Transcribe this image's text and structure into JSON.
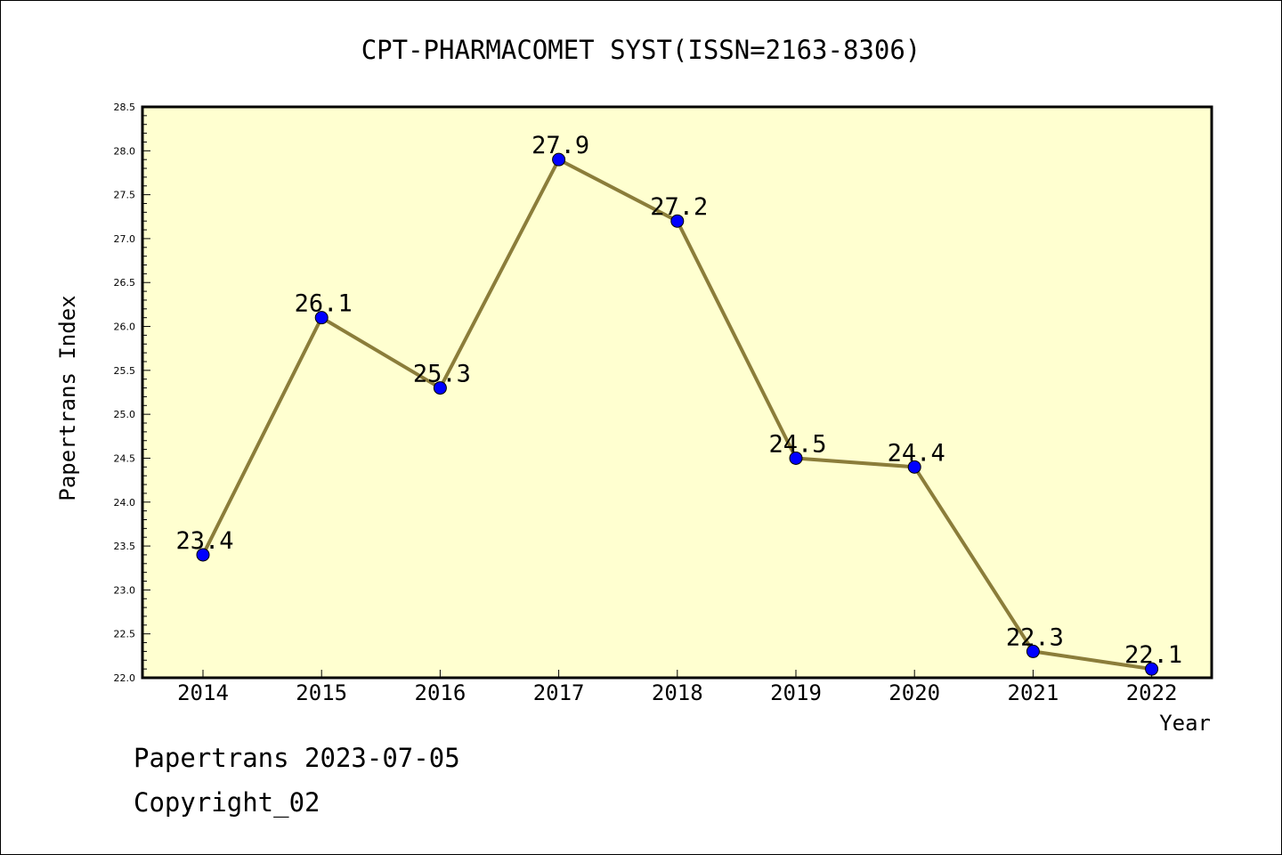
{
  "chart_data": {
    "type": "line",
    "title": "CPT-PHARMACOMET SYST(ISSN=2163-8306)",
    "xlabel": "Year",
    "ylabel": "Papertrans Index",
    "categories": [
      "2014",
      "2015",
      "2016",
      "2017",
      "2018",
      "2019",
      "2020",
      "2021",
      "2022"
    ],
    "series": [
      {
        "values": [
          23.4,
          26.1,
          25.3,
          27.9,
          27.2,
          24.5,
          24.4,
          22.3,
          22.1
        ],
        "labels": [
          "23.4",
          "26.1",
          "25.3",
          "27.9",
          "27.2",
          "24.5",
          "24.4",
          "22.3",
          "22.1"
        ]
      }
    ],
    "ylim": [
      22.0,
      28.5
    ],
    "yticks": [
      "22.0",
      "22.5",
      "23.0",
      "23.5",
      "24.0",
      "24.5",
      "25.0",
      "25.5",
      "26.0",
      "26.5",
      "27.0",
      "27.5",
      "28.0",
      "28.5"
    ],
    "grid": false,
    "colors": {
      "plot_background": "#ffffd0",
      "line": "#8b7d3a",
      "marker": "#0000ff"
    }
  },
  "footer": {
    "line1": "Papertrans 2023-07-05",
    "line2": "Copyright_02"
  }
}
